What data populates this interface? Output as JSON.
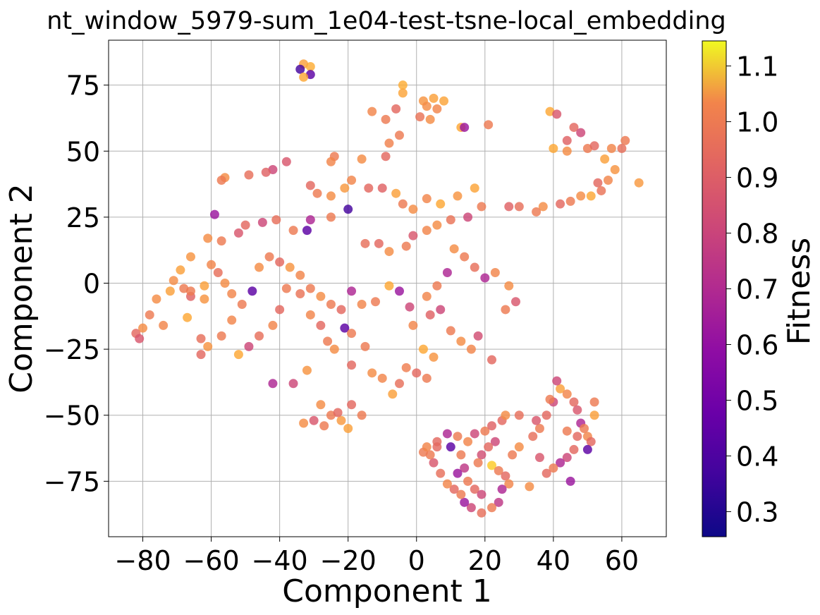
{
  "chart_data": {
    "type": "scatter",
    "title": "nt_window_5979-sum_1e04-test-tsne-local_embedding",
    "xlabel": "Component 1",
    "ylabel": "Component 2",
    "xlim": [
      -90,
      73
    ],
    "ylim": [
      -96,
      92
    ],
    "xticks": [
      -80,
      -60,
      -40,
      -20,
      0,
      20,
      40,
      60
    ],
    "yticks": [
      -75,
      -50,
      -25,
      0,
      25,
      50,
      75
    ],
    "xtick_labels": [
      "−80",
      "−60",
      "−40",
      "−20",
      "0",
      "20",
      "40",
      "60"
    ],
    "ytick_labels": [
      "−75",
      "−50",
      "−25",
      "0",
      "25",
      "50",
      "75"
    ],
    "grid": true,
    "colormap": "plasma",
    "color_range": [
      0.255,
      1.145
    ],
    "colorbar": {
      "label": "Fitness",
      "ticks": [
        0.3,
        0.4,
        0.5,
        0.6,
        0.7,
        0.8,
        0.9,
        1.0,
        1.1
      ],
      "tick_labels": [
        "0.3",
        "0.4",
        "0.5",
        "0.6",
        "0.7",
        "0.8",
        "0.9",
        "1.0",
        "1.1"
      ]
    },
    "points": [
      [
        -33,
        83,
        0.95
      ],
      [
        -31,
        82,
        0.98
      ],
      [
        -34,
        81,
        0.35
      ],
      [
        -31,
        79,
        0.4
      ],
      [
        -33,
        78,
        0.97
      ],
      [
        -4,
        75,
        0.98
      ],
      [
        -4,
        72,
        0.96
      ],
      [
        2,
        69,
        0.92
      ],
      [
        5,
        70,
        0.95
      ],
      [
        8,
        69,
        0.96
      ],
      [
        3,
        67,
        0.9
      ],
      [
        6,
        66,
        0.88
      ],
      [
        -13,
        65,
        0.88
      ],
      [
        -6,
        66,
        0.8
      ],
      [
        -9,
        62,
        0.85
      ],
      [
        1,
        63,
        0.83
      ],
      [
        4,
        62,
        0.9
      ],
      [
        13,
        59,
        0.97
      ],
      [
        14,
        59,
        0.55
      ],
      [
        21,
        60,
        0.85
      ],
      [
        39,
        65,
        0.97
      ],
      [
        41,
        64,
        0.75
      ],
      [
        46,
        59,
        0.8
      ],
      [
        48,
        57,
        0.7
      ],
      [
        44,
        54,
        0.78
      ],
      [
        40,
        51,
        0.97
      ],
      [
        44,
        50,
        0.9
      ],
      [
        50,
        51,
        0.85
      ],
      [
        52,
        52,
        0.8
      ],
      [
        61,
        54,
        0.85
      ],
      [
        60,
        51,
        0.82
      ],
      [
        57,
        51,
        0.88
      ],
      [
        55,
        47,
        0.95
      ],
      [
        58,
        43,
        0.92
      ],
      [
        56,
        39,
        0.88
      ],
      [
        65,
        38,
        0.93
      ],
      [
        53,
        38,
        0.8
      ],
      [
        54,
        35,
        0.83
      ],
      [
        51,
        33,
        0.97
      ],
      [
        48,
        33,
        0.9
      ],
      [
        45,
        31,
        0.85
      ],
      [
        42,
        30,
        0.8
      ],
      [
        37,
        29,
        0.9
      ],
      [
        35,
        27,
        0.85
      ],
      [
        30,
        29,
        0.82
      ],
      [
        27,
        29,
        0.78
      ],
      [
        -5,
        56,
        0.85
      ],
      [
        -8,
        53,
        0.87
      ],
      [
        -9,
        48,
        0.8
      ],
      [
        -16,
        47,
        0.9
      ],
      [
        -24,
        48,
        0.85
      ],
      [
        -25,
        46,
        0.88
      ],
      [
        -38,
        46,
        0.75
      ],
      [
        -42,
        43,
        0.7
      ],
      [
        -44,
        42,
        0.78
      ],
      [
        -49,
        41,
        0.82
      ],
      [
        -56,
        40,
        0.9
      ],
      [
        -57,
        39,
        0.85
      ],
      [
        -31,
        37,
        0.8
      ],
      [
        -29,
        34,
        0.85
      ],
      [
        -25,
        33,
        0.9
      ],
      [
        -21,
        36,
        0.93
      ],
      [
        -19,
        39,
        0.88
      ],
      [
        -14,
        36,
        0.8
      ],
      [
        -10,
        36,
        0.78
      ],
      [
        -6,
        34,
        0.95
      ],
      [
        -4,
        30,
        0.85
      ],
      [
        -1,
        28,
        0.9
      ],
      [
        3,
        32,
        0.88
      ],
      [
        7,
        30,
        0.97
      ],
      [
        12,
        33,
        0.92
      ],
      [
        17,
        36,
        0.96
      ],
      [
        19,
        29,
        0.85
      ],
      [
        15,
        25,
        0.7
      ],
      [
        10,
        24,
        0.83
      ],
      [
        6,
        22,
        0.9
      ],
      [
        3,
        20,
        0.88
      ],
      [
        -1,
        18,
        0.75
      ],
      [
        -3,
        14,
        0.85
      ],
      [
        -8,
        12,
        0.9
      ],
      [
        -11,
        15,
        0.8
      ],
      [
        -15,
        15,
        0.82
      ],
      [
        -20,
        28,
        0.35
      ],
      [
        -25,
        25,
        0.85
      ],
      [
        -31,
        24,
        0.6
      ],
      [
        -32,
        20,
        0.4
      ],
      [
        -36,
        20,
        0.85
      ],
      [
        -41,
        24,
        0.82
      ],
      [
        -45,
        23,
        0.7
      ],
      [
        -50,
        22,
        0.8
      ],
      [
        -52,
        19,
        0.75
      ],
      [
        -57,
        16,
        0.85
      ],
      [
        -59,
        26,
        0.55
      ],
      [
        -61,
        17,
        0.9
      ],
      [
        -66,
        10,
        0.92
      ],
      [
        -69,
        5,
        0.95
      ],
      [
        -71,
        1,
        0.9
      ],
      [
        -68,
        -2,
        0.85
      ],
      [
        -66,
        -5,
        0.78
      ],
      [
        -62,
        -6,
        0.92
      ],
      [
        -72,
        -3,
        0.95
      ],
      [
        -76,
        -6,
        0.9
      ],
      [
        -78,
        -12,
        0.85
      ],
      [
        -80,
        -17,
        0.9
      ],
      [
        -82,
        -19,
        0.8
      ],
      [
        -81,
        -21,
        0.75
      ],
      [
        -74,
        -16,
        0.88
      ],
      [
        -67,
        -13,
        0.97
      ],
      [
        -63,
        -21,
        0.82
      ],
      [
        -61,
        -24,
        0.92
      ],
      [
        -63,
        -27,
        0.8
      ],
      [
        -57,
        -20,
        0.85
      ],
      [
        -54,
        -14,
        0.88
      ],
      [
        -52,
        -27,
        0.97
      ],
      [
        -49,
        -24,
        0.7
      ],
      [
        -46,
        -20,
        0.82
      ],
      [
        -42,
        -16,
        0.88
      ],
      [
        -40,
        -10,
        0.8
      ],
      [
        -38,
        -2,
        0.85
      ],
      [
        -34,
        -4,
        0.83
      ],
      [
        -31,
        -12,
        0.88
      ],
      [
        -28,
        -16,
        0.8
      ],
      [
        -26,
        -22,
        0.85
      ],
      [
        -24,
        -25,
        0.9
      ],
      [
        -21,
        -17,
        0.4
      ],
      [
        -19,
        -19,
        0.85
      ],
      [
        -19,
        -31,
        0.8
      ],
      [
        -15,
        -24,
        0.85
      ],
      [
        -13,
        -34,
        0.9
      ],
      [
        -10,
        -36,
        0.88
      ],
      [
        -7,
        -42,
        0.95
      ],
      [
        -5,
        -38,
        0.82
      ],
      [
        -3,
        -32,
        0.86
      ],
      [
        0,
        -34,
        0.8
      ],
      [
        3,
        -36,
        0.85
      ],
      [
        5,
        -28,
        0.92
      ],
      [
        2,
        -25,
        0.97
      ],
      [
        -1,
        -16,
        0.88
      ],
      [
        4,
        -12,
        0.78
      ],
      [
        7,
        -10,
        0.7
      ],
      [
        10,
        -18,
        0.85
      ],
      [
        13,
        -22,
        0.9
      ],
      [
        16,
        -25,
        0.88
      ],
      [
        18,
        -20,
        0.72
      ],
      [
        22,
        -29,
        0.8
      ],
      [
        26,
        -10,
        0.85
      ],
      [
        29,
        -7,
        0.75
      ],
      [
        27,
        -1,
        0.9
      ],
      [
        23,
        4,
        0.88
      ],
      [
        20,
        2,
        0.6
      ],
      [
        17,
        6,
        0.82
      ],
      [
        14,
        10,
        0.85
      ],
      [
        11,
        13,
        0.9
      ],
      [
        9,
        4,
        0.6
      ],
      [
        6,
        -1,
        0.85
      ],
      [
        3,
        -5,
        0.88
      ],
      [
        -2,
        -9,
        0.7
      ],
      [
        -5,
        -3,
        0.55
      ],
      [
        -8,
        -1,
        0.97
      ],
      [
        -12,
        -7,
        0.85
      ],
      [
        -16,
        -8,
        0.88
      ],
      [
        -19,
        -3,
        0.6
      ],
      [
        -22,
        -10,
        0.8
      ],
      [
        -25,
        -8,
        0.85
      ],
      [
        -28,
        -5,
        0.9
      ],
      [
        -31,
        -2,
        0.85
      ],
      [
        -34,
        3,
        0.88
      ],
      [
        -37,
        6,
        0.92
      ],
      [
        -40,
        8,
        0.8
      ],
      [
        -43,
        10,
        0.85
      ],
      [
        -46,
        6,
        0.9
      ],
      [
        -48,
        -3,
        0.4
      ],
      [
        -51,
        -8,
        0.85
      ],
      [
        -54,
        -4,
        0.88
      ],
      [
        -56,
        0,
        0.9
      ],
      [
        -58,
        4,
        0.82
      ],
      [
        -60,
        7,
        0.88
      ],
      [
        -62,
        -1,
        0.95
      ],
      [
        -66,
        -3,
        0.85
      ],
      [
        -36,
        -38,
        0.7
      ],
      [
        -42,
        -38,
        0.6
      ],
      [
        -32,
        -33,
        0.92
      ],
      [
        -28,
        -46,
        0.9
      ],
      [
        -25,
        -50,
        0.85
      ],
      [
        -22,
        -52,
        0.93
      ],
      [
        -20,
        -55,
        0.95
      ],
      [
        -19,
        -46,
        0.8
      ],
      [
        -30,
        -52,
        0.75
      ],
      [
        -33,
        -53,
        0.9
      ],
      [
        -27,
        -54,
        0.85
      ],
      [
        -23,
        -49,
        0.8
      ],
      [
        -16,
        -50,
        0.85
      ],
      [
        2,
        -64,
        0.85
      ],
      [
        6,
        -62,
        0.8
      ],
      [
        9,
        -57,
        0.6
      ],
      [
        12,
        -58,
        0.85
      ],
      [
        15,
        -60,
        0.88
      ],
      [
        17,
        -57,
        0.7
      ],
      [
        20,
        -56,
        0.85
      ],
      [
        22,
        -54,
        0.78
      ],
      [
        25,
        -52,
        0.8
      ],
      [
        26,
        -50,
        0.9
      ],
      [
        23,
        -60,
        0.7
      ],
      [
        21,
        -62,
        0.8
      ],
      [
        19,
        -65,
        0.72
      ],
      [
        18,
        -68,
        0.85
      ],
      [
        22,
        -69,
        1.05
      ],
      [
        24,
        -71,
        0.85
      ],
      [
        26,
        -73,
        0.8
      ],
      [
        27,
        -76,
        0.88
      ],
      [
        25,
        -78,
        0.6
      ],
      [
        24,
        -83,
        0.65
      ],
      [
        22,
        -85,
        0.85
      ],
      [
        19,
        -87,
        0.82
      ],
      [
        16,
        -85,
        0.7
      ],
      [
        14,
        -83,
        0.55
      ],
      [
        13,
        -80,
        0.85
      ],
      [
        11,
        -78,
        0.8
      ],
      [
        9,
        -76,
        0.88
      ],
      [
        7,
        -72,
        0.82
      ],
      [
        5,
        -68,
        0.75
      ],
      [
        4,
        -65,
        0.85
      ],
      [
        3,
        -62,
        0.88
      ],
      [
        6,
        -60,
        0.8
      ],
      [
        10,
        -62,
        0.4
      ],
      [
        13,
        -65,
        0.85
      ],
      [
        14,
        -70,
        0.65
      ],
      [
        12,
        -72,
        0.55
      ],
      [
        15,
        -75,
        0.85
      ],
      [
        17,
        -78,
        0.8
      ],
      [
        19,
        -80,
        0.7
      ],
      [
        28,
        -65,
        0.85
      ],
      [
        30,
        -62,
        0.9
      ],
      [
        34,
        -58,
        0.82
      ],
      [
        36,
        -55,
        0.85
      ],
      [
        38,
        -50,
        0.8
      ],
      [
        40,
        -45,
        0.7
      ],
      [
        42,
        -40,
        0.95
      ],
      [
        44,
        -42,
        0.88
      ],
      [
        46,
        -45,
        0.8
      ],
      [
        47,
        -48,
        0.75
      ],
      [
        48,
        -53,
        0.6
      ],
      [
        49,
        -55,
        0.85
      ],
      [
        50,
        -58,
        0.88
      ],
      [
        51,
        -60,
        0.8
      ],
      [
        50,
        -63,
        0.4
      ],
      [
        52,
        -50,
        0.95
      ],
      [
        52,
        -45,
        0.85
      ],
      [
        46,
        -63,
        0.8
      ],
      [
        44,
        -66,
        0.7
      ],
      [
        42,
        -68,
        0.6
      ],
      [
        40,
        -70,
        0.85
      ],
      [
        38,
        -72,
        0.8
      ],
      [
        36,
        -66,
        0.75
      ],
      [
        44,
        -56,
        0.85
      ],
      [
        41,
        -37,
        0.7
      ],
      [
        39,
        -44,
        0.85
      ],
      [
        35,
        -52,
        0.75
      ],
      [
        33,
        -77,
        0.9
      ],
      [
        45,
        -75,
        0.55
      ],
      [
        47,
        -58,
        0.8
      ],
      [
        30,
        -50,
        0.82
      ]
    ]
  }
}
